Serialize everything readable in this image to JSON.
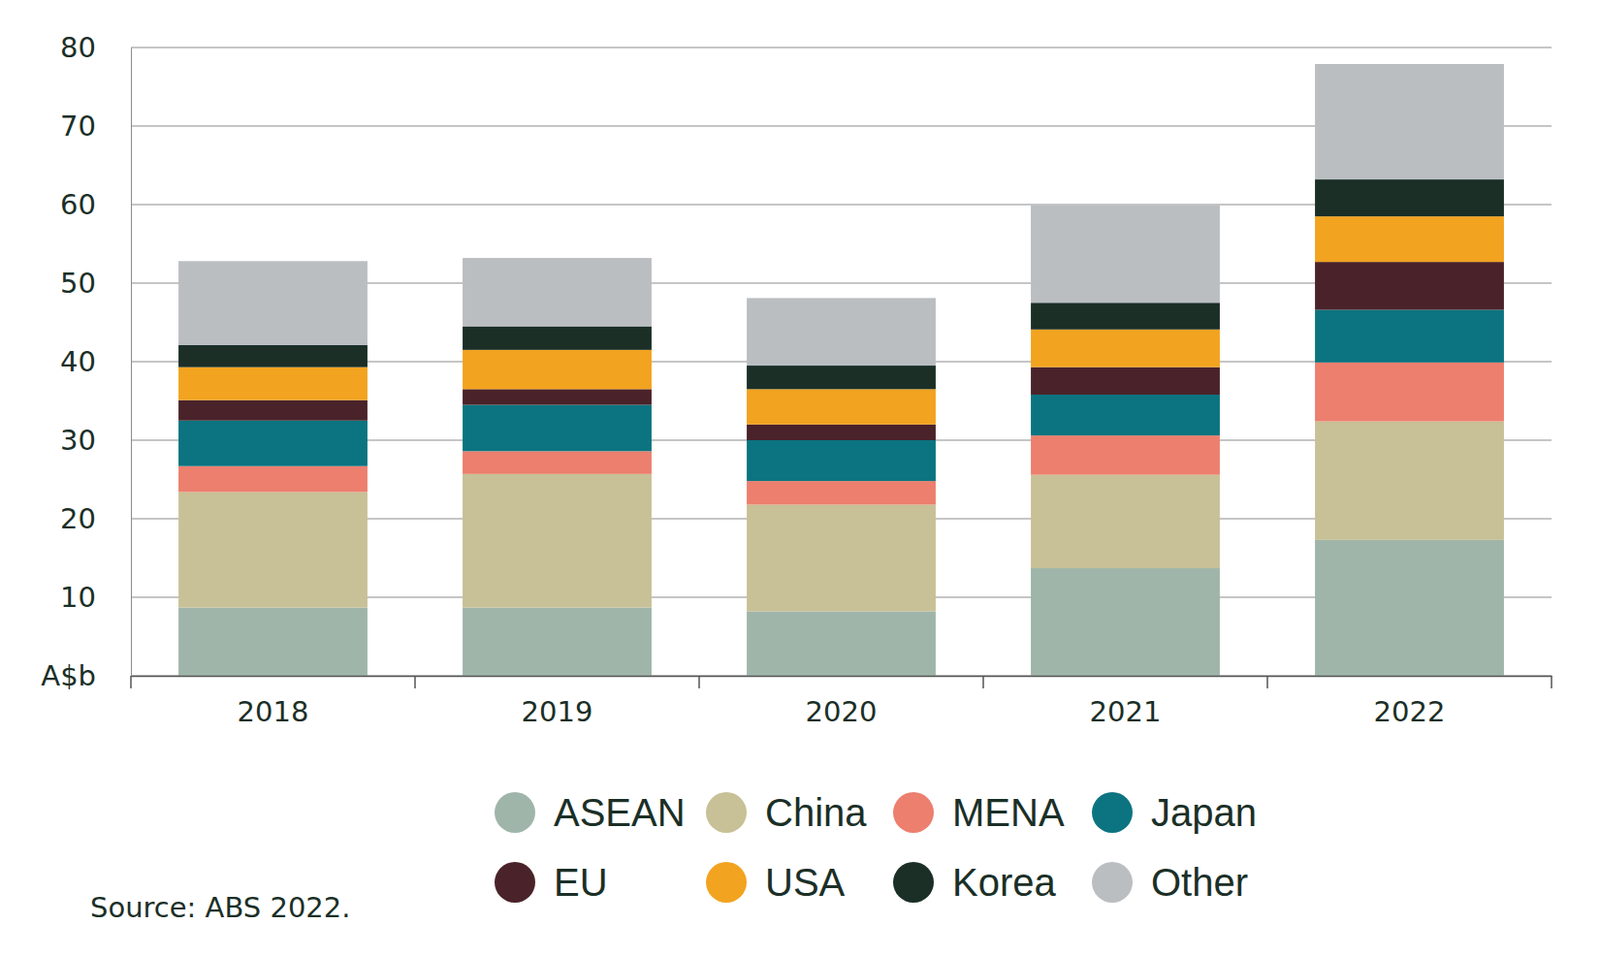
{
  "chart_data": {
    "type": "bar",
    "stacked": true,
    "grid": true,
    "categories": [
      "2018",
      "2019",
      "2020",
      "2021",
      "2022"
    ],
    "ylim": [
      0,
      80
    ],
    "yticks": [
      {
        "value": 0,
        "label": "A$b"
      },
      10,
      20,
      30,
      40,
      50,
      60,
      70,
      80
    ],
    "series": [
      {
        "name": "ASEAN",
        "color": "#9fb5a9",
        "values": [
          8.7,
          8.7,
          8.2,
          13.7,
          17.3
        ]
      },
      {
        "name": "China",
        "color": "#c8c096",
        "values": [
          14.7,
          17.0,
          13.6,
          11.9,
          15.1
        ]
      },
      {
        "name": "MENA",
        "color": "#ec7f6e",
        "values": [
          3.3,
          2.9,
          3.0,
          5.0,
          7.5
        ]
      },
      {
        "name": "Japan",
        "color": "#0b7480",
        "values": [
          5.8,
          5.9,
          5.2,
          5.2,
          6.7
        ]
      },
      {
        "name": "EU",
        "color": "#4a232a",
        "values": [
          2.6,
          2.0,
          2.0,
          3.5,
          6.1
        ]
      },
      {
        "name": "USA",
        "color": "#f2a31f",
        "values": [
          4.2,
          5.0,
          4.5,
          4.8,
          5.8
        ]
      },
      {
        "name": "Korea",
        "color": "#1b2f27",
        "values": [
          2.8,
          3.0,
          3.0,
          3.4,
          4.7
        ]
      },
      {
        "name": "Other",
        "color": "#babec1",
        "values": [
          10.7,
          8.7,
          8.6,
          12.4,
          14.7
        ]
      }
    ],
    "annotations": [
      "Source: ABS 2022."
    ]
  }
}
